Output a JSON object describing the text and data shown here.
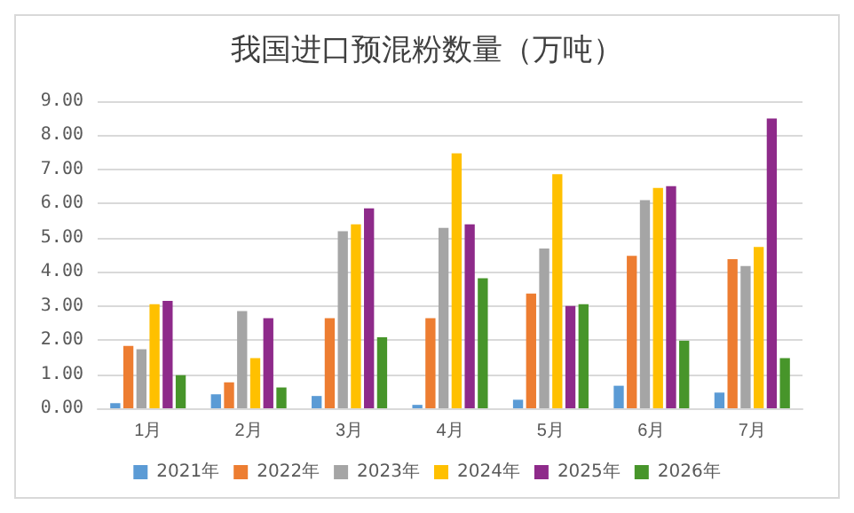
{
  "chart_data": {
    "type": "bar",
    "title": "我国进口预混粉数量（万吨）",
    "categories": [
      "1月",
      "2月",
      "3月",
      "4月",
      "5月",
      "6月",
      "7月"
    ],
    "series": [
      {
        "name": "2021年",
        "color": "#5b9bd5",
        "values": [
          0.15,
          0.41,
          0.36,
          0.1,
          0.25,
          0.66,
          0.46
        ]
      },
      {
        "name": "2022年",
        "color": "#ed7d31",
        "values": [
          1.83,
          0.76,
          2.64,
          2.64,
          3.36,
          4.47,
          4.37
        ]
      },
      {
        "name": "2023年",
        "color": "#a5a5a5",
        "values": [
          1.73,
          2.85,
          5.19,
          5.29,
          4.68,
          6.1,
          4.17
        ]
      },
      {
        "name": "2024年",
        "color": "#ffc000",
        "values": [
          3.05,
          1.47,
          5.39,
          7.47,
          6.86,
          6.46,
          4.73
        ]
      },
      {
        "name": "2025年",
        "color": "#8e2a8a",
        "values": [
          3.15,
          2.64,
          5.86,
          5.39,
          3.0,
          6.51,
          8.49
        ]
      },
      {
        "name": "2026年",
        "color": "#47952a",
        "values": [
          0.97,
          0.61,
          2.08,
          3.81,
          3.05,
          1.98,
          1.47
        ]
      }
    ],
    "ylim": [
      0,
      9
    ],
    "yticks": [
      {
        "value": 0,
        "label": "0.00"
      },
      {
        "value": 1,
        "label": "1.00"
      },
      {
        "value": 2,
        "label": "2.00"
      },
      {
        "value": 3,
        "label": "3.00"
      },
      {
        "value": 4,
        "label": "4.00"
      },
      {
        "value": 5,
        "label": "5.00"
      },
      {
        "value": 6,
        "label": "6.00"
      },
      {
        "value": 7,
        "label": "7.00"
      },
      {
        "value": 8,
        "label": "8.00"
      },
      {
        "value": 9,
        "label": "9.00"
      }
    ],
    "grid": "y",
    "legend": "bottom"
  }
}
